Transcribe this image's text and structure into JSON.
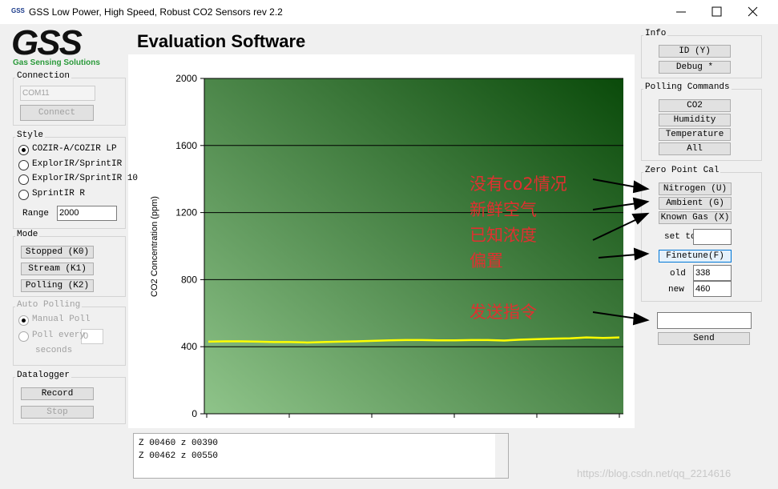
{
  "window": {
    "icon": "GSS",
    "title": "GSS Low Power, High Speed, Robust  CO2 Sensors  rev 2.2"
  },
  "logo": {
    "text": "GSS",
    "tagline": "Gas Sensing Solutions"
  },
  "heading": "Evaluation Software",
  "connection": {
    "label": "Connection",
    "port": "COM11",
    "button": "Connect"
  },
  "style": {
    "label": "Style",
    "options": [
      "COZIR-A/COZIR LP",
      "ExplorIR/SprintIR",
      "ExplorIR/SprintIR 10",
      "SprintIR R"
    ],
    "selected": 0,
    "range_label": "Range",
    "range": "2000"
  },
  "mode": {
    "label": "Mode",
    "buttons": [
      "Stopped (K0)",
      "Stream (K1)",
      "Polling (K2)"
    ]
  },
  "auto_polling": {
    "label": "Auto Polling",
    "options": [
      "Manual Poll",
      "Poll every"
    ],
    "interval": "0",
    "unit": "seconds"
  },
  "datalogger": {
    "label": "Datalogger",
    "buttons": [
      "Record",
      "Stop"
    ]
  },
  "info": {
    "label": "Info",
    "buttons": [
      "ID (Y)",
      "Debug *"
    ]
  },
  "polling_commands": {
    "label": "Polling Commands",
    "buttons": [
      "CO2",
      "Humidity",
      "Temperature",
      "All"
    ]
  },
  "zero_point_cal": {
    "label": "Zero Point Cal",
    "buttons": [
      "Nitrogen (U)",
      "Ambient (G)",
      "Known Gas (X)"
    ],
    "set_to_label": "set to",
    "finetune": "Finetune(F)",
    "old_label": "old",
    "old": "338",
    "new_label": "new",
    "new": "460"
  },
  "send": {
    "button": "Send"
  },
  "annotations": [
    "没有co2情况",
    "新鲜空气",
    "已知浓度",
    "偏置",
    "发送指令"
  ],
  "log": [
    "Z 00460 z 00390",
    "Z 00462 z 00550"
  ],
  "watermark": "https://blog.csdn.net/qq_2214616",
  "chart_data": {
    "type": "line",
    "ylabel": "CO2 Concentration (ppm)",
    "x": [
      0,
      1,
      2,
      3,
      4,
      5,
      6,
      7,
      8,
      9,
      10,
      11,
      12,
      13,
      14,
      15,
      16,
      17,
      18,
      19,
      20,
      21,
      22,
      23,
      24,
      25
    ],
    "series": [
      {
        "color": "#ffff00",
        "values": [
          430,
          432,
          432,
          430,
          428,
          428,
          425,
          428,
          430,
          432,
          435,
          438,
          440,
          440,
          438,
          438,
          440,
          440,
          437,
          442,
          445,
          448,
          450,
          455,
          452,
          455
        ]
      }
    ],
    "xlim": [
      0,
      25
    ],
    "ylim": [
      0,
      2000
    ],
    "yticks": [
      0,
      400,
      800,
      1200,
      1600,
      2000
    ],
    "grid": true
  }
}
